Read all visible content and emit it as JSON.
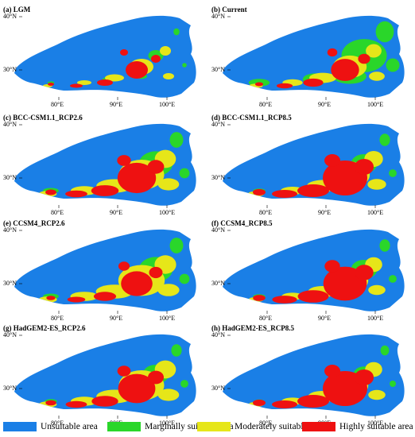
{
  "colors": {
    "unsuitable": "#1a7fe6",
    "marginal": "#2ad62a",
    "moderate": "#e6e619",
    "high": "#ee1111"
  },
  "axes": {
    "y_ticks": [
      "40°N",
      "30°N"
    ],
    "x_ticks": [
      "80°E",
      "90°E",
      "100°E"
    ]
  },
  "panels": [
    {
      "label": "(a) LGM",
      "levels": {
        "marginal": 0.1,
        "moderate": 0.25,
        "high": 0.25
      }
    },
    {
      "label": "(b) Current",
      "levels": {
        "marginal": 0.9,
        "moderate": 0.5,
        "high": 0.4
      }
    },
    {
      "label": "(c) BCC-CSM1.1_RCP2.6",
      "levels": {
        "marginal": 0.5,
        "moderate": 0.9,
        "high": 0.75
      }
    },
    {
      "label": "(d) BCC-CSM1.1_RCP8.5",
      "levels": {
        "marginal": 0.3,
        "moderate": 0.7,
        "high": 1.0
      }
    },
    {
      "label": "(e) CCSM4_RCP2.6",
      "levels": {
        "marginal": 0.5,
        "moderate": 0.95,
        "high": 0.5
      }
    },
    {
      "label": "(f) CCSM4_RCP8.5",
      "levels": {
        "marginal": 0.3,
        "moderate": 0.6,
        "high": 0.95
      }
    },
    {
      "label": "(g) HadGEM2-ES_RCP2.6",
      "levels": {
        "marginal": 0.3,
        "moderate": 0.9,
        "high": 0.7
      }
    },
    {
      "label": "(h) HadGEM2-ES_RCP8.5",
      "levels": {
        "marginal": 0.2,
        "moderate": 0.6,
        "high": 1.0
      }
    }
  ],
  "legend": [
    {
      "key": "unsuitable",
      "label": "Unsuitable area"
    },
    {
      "key": "marginal",
      "label": "Marginally suitable area"
    },
    {
      "key": "moderate",
      "label": "Moderately suitable area"
    },
    {
      "key": "high",
      "label": "Highly suitable area"
    }
  ]
}
